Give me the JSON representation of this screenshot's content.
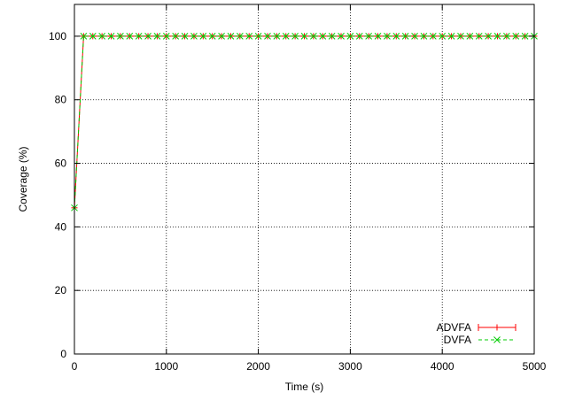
{
  "chart_data": {
    "type": "line",
    "title": "",
    "xlabel": "Time (s)",
    "ylabel": "Coverage (%)",
    "xlim": [
      0,
      5000
    ],
    "ylim": [
      0,
      110
    ],
    "xticks": [
      0,
      1000,
      2000,
      3000,
      4000,
      5000
    ],
    "yticks": [
      0,
      20,
      40,
      60,
      80,
      100
    ],
    "grid": true,
    "legend_position": "bottom-right",
    "series": [
      {
        "name": "ADVFA",
        "color": "#ff0000",
        "marker": "plus",
        "line": "solid",
        "x": [
          0,
          100,
          200,
          300,
          400,
          500,
          600,
          700,
          800,
          900,
          1000,
          1100,
          1200,
          1300,
          1400,
          1500,
          1600,
          1700,
          1800,
          1900,
          2000,
          2100,
          2200,
          2300,
          2400,
          2500,
          2600,
          2700,
          2800,
          2900,
          3000,
          3100,
          3200,
          3300,
          3400,
          3500,
          3600,
          3700,
          3800,
          3900,
          4000,
          4100,
          4200,
          4300,
          4400,
          4500,
          4600,
          4700,
          4800,
          4900,
          5000
        ],
        "y": [
          46,
          100,
          100,
          100,
          100,
          100,
          100,
          100,
          100,
          100,
          100,
          100,
          100,
          100,
          100,
          100,
          100,
          100,
          100,
          100,
          100,
          100,
          100,
          100,
          100,
          100,
          100,
          100,
          100,
          100,
          100,
          100,
          100,
          100,
          100,
          100,
          100,
          100,
          100,
          100,
          100,
          100,
          100,
          100,
          100,
          100,
          100,
          100,
          100,
          100,
          100
        ]
      },
      {
        "name": "DVFA",
        "color": "#00cc00",
        "marker": "cross",
        "line": "dashed",
        "x": [
          0,
          100,
          200,
          300,
          400,
          500,
          600,
          700,
          800,
          900,
          1000,
          1100,
          1200,
          1300,
          1400,
          1500,
          1600,
          1700,
          1800,
          1900,
          2000,
          2100,
          2200,
          2300,
          2400,
          2500,
          2600,
          2700,
          2800,
          2900,
          3000,
          3100,
          3200,
          3300,
          3400,
          3500,
          3600,
          3700,
          3800,
          3900,
          4000,
          4100,
          4200,
          4300,
          4400,
          4500,
          4600,
          4700,
          4800,
          4900,
          5000
        ],
        "y": [
          46,
          100,
          100,
          100,
          100,
          100,
          100,
          100,
          100,
          100,
          100,
          100,
          100,
          100,
          100,
          100,
          100,
          100,
          100,
          100,
          100,
          100,
          100,
          100,
          100,
          100,
          100,
          100,
          100,
          100,
          100,
          100,
          100,
          100,
          100,
          100,
          100,
          100,
          100,
          100,
          100,
          100,
          100,
          100,
          100,
          100,
          100,
          100,
          100,
          100,
          100
        ]
      }
    ]
  }
}
